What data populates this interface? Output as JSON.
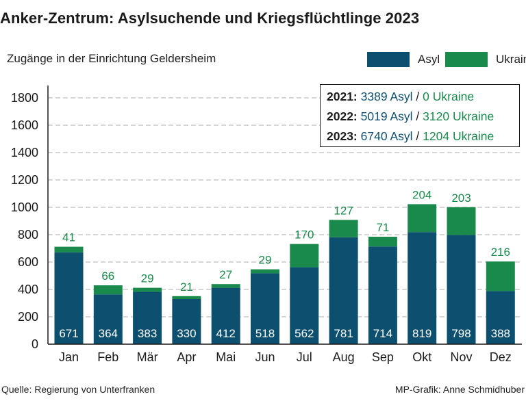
{
  "title": "Anker-Zentrum: Asylsuchende und Kriegsflüchtlinge 2023",
  "subtitle": "Zugänge in der Einrichtung Geldersheim",
  "legend": {
    "asyl": "Asyl",
    "ukraine": "Ukraine"
  },
  "colors": {
    "asyl": "#0d4f6e",
    "ukraine": "#1a8a4c",
    "grid": "#c8c8c8"
  },
  "summary": [
    {
      "year": "2021:",
      "asyl": "3389 Asyl",
      "sep": "/",
      "ukraine": "0 Ukraine"
    },
    {
      "year": "2022:",
      "asyl": "5019 Asyl",
      "sep": "/",
      "ukraine": "3120 Ukraine"
    },
    {
      "year": "2023:",
      "asyl": "6740 Asyl",
      "sep": "/",
      "ukraine": "1204 Ukraine"
    }
  ],
  "source": "Quelle: Regierung von Unterfranken",
  "credit": "MP-Grafik: Anne Schmidhuber",
  "chart_data": {
    "type": "bar",
    "stacked": true,
    "categories": [
      "Jan",
      "Feb",
      "Mär",
      "Apr",
      "Mai",
      "Jun",
      "Jul",
      "Aug",
      "Sep",
      "Okt",
      "Nov",
      "Dez"
    ],
    "series": [
      {
        "name": "Asyl",
        "values": [
          671,
          364,
          383,
          330,
          412,
          518,
          562,
          781,
          714,
          819,
          798,
          388
        ]
      },
      {
        "name": "Ukraine",
        "values": [
          41,
          66,
          29,
          21,
          27,
          29,
          170,
          127,
          71,
          204,
          203,
          216
        ]
      }
    ],
    "yticks": [
      "0",
      "200",
      "400",
      "600",
      "800",
      "1000",
      "1200",
      "1400",
      "1600",
      "1800"
    ],
    "ylim": [
      0,
      1850
    ],
    "grid": true,
    "title": "Anker-Zentrum: Asylsuchende und Kriegsflüchtlinge 2023",
    "xlabel": "",
    "ylabel": ""
  }
}
